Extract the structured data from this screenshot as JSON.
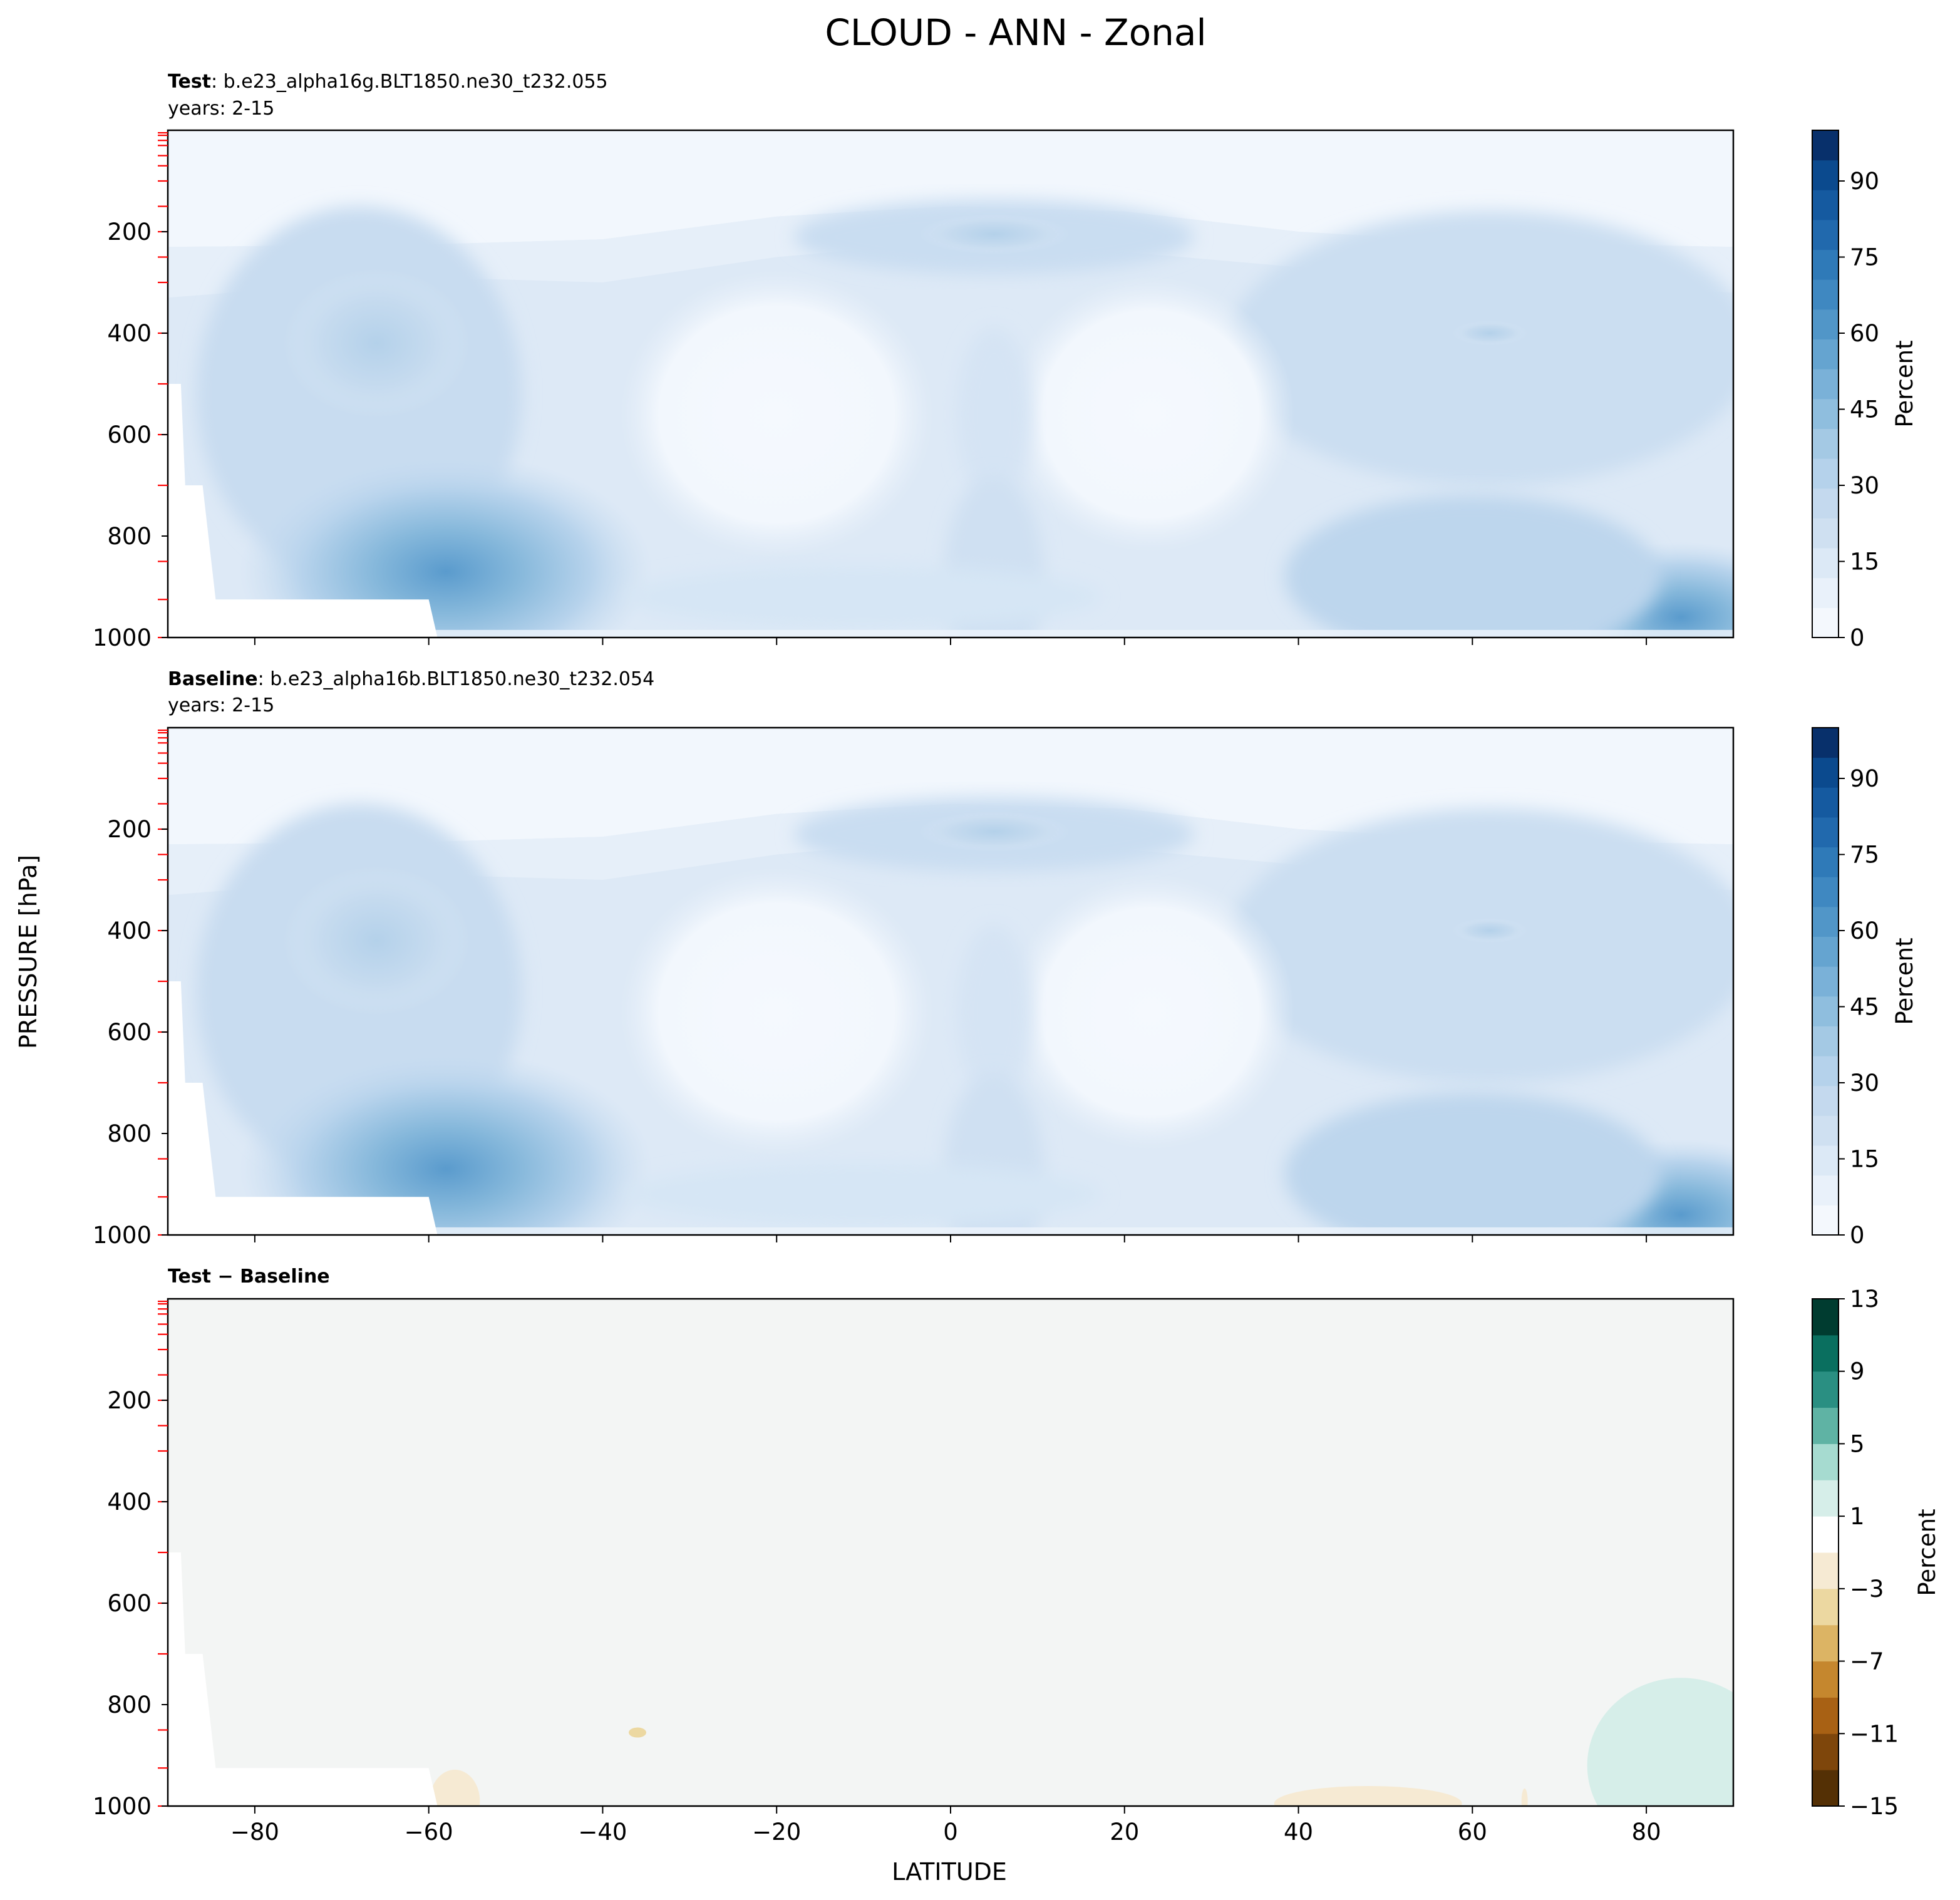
{
  "figure_title": "CLOUD - ANN - Zonal",
  "shared_ylabel": "PRESSURE [hPa]",
  "shared_xlabel": "LATITUDE",
  "colors": {
    "blues": [
      "#f4f8fd",
      "#e9f1fa",
      "#dce9f6",
      "#cfe0f1",
      "#c4d9ee",
      "#b5d2eb",
      "#a4c9e4",
      "#8fbede",
      "#7ab1d8",
      "#65a4d0",
      "#5196c8",
      "#3f88c1",
      "#2f7ab8",
      "#2169ad",
      "#155aa0",
      "#0b4a8e",
      "#08306b"
    ],
    "diff": [
      "#543005",
      "#7e460b",
      "#a86114",
      "#c5872e",
      "#dcb464",
      "#ecd8a1",
      "#f6ead3",
      "#ffffff",
      "#d6eee9",
      "#a6dbd0",
      "#5fb3a4",
      "#2a8f82",
      "#0a6f5f",
      "#003c30"
    ],
    "red_tick": "#ff0000"
  },
  "chart_data": [
    {
      "type": "heatmap",
      "label_bold": "Test",
      "label_rest": ": b.e23_alpha16g.BLT1850.ne30_t232.055",
      "subtitle": "years: 2-15",
      "xlim": [
        -90,
        90
      ],
      "ylim": [
        1000,
        0
      ],
      "yticks": [
        "200",
        "400",
        "600",
        "800",
        "1000"
      ],
      "colorbar_label": "Percent",
      "colorbar_range": [
        0,
        100
      ],
      "colorbar_ticks": [
        "0",
        "15",
        "30",
        "45",
        "60",
        "75",
        "90"
      ],
      "field_description": "zonal mean cloud fraction; maxima near 60S and 80N below 800 hPa (~50%), minima in subtropics",
      "highlights": [
        {
          "lat": -60,
          "p": 870,
          "value": 50
        },
        {
          "lat": 85,
          "p": 980,
          "value": 45
        },
        {
          "lat": 5,
          "p": 200,
          "value": 28
        },
        {
          "lat": -66,
          "p": 410,
          "value": 27
        }
      ]
    },
    {
      "type": "heatmap",
      "label_bold": "Baseline",
      "label_rest": ": b.e23_alpha16b.BLT1850.ne30_t232.054",
      "subtitle": "years: 2-15",
      "xlim": [
        -90,
        90
      ],
      "ylim": [
        1000,
        0
      ],
      "yticks": [
        "200",
        "400",
        "600",
        "800",
        "1000"
      ],
      "colorbar_label": "Percent",
      "colorbar_range": [
        0,
        100
      ],
      "colorbar_ticks": [
        "0",
        "15",
        "30",
        "45",
        "60",
        "75",
        "90"
      ],
      "highlights": [
        {
          "lat": -60,
          "p": 870,
          "value": 50
        },
        {
          "lat": 85,
          "p": 980,
          "value": 45
        },
        {
          "lat": 5,
          "p": 200,
          "value": 28
        },
        {
          "lat": -66,
          "p": 410,
          "value": 27
        }
      ]
    },
    {
      "type": "heatmap",
      "label_bold": "Test",
      "label_sep": " − ",
      "label_bold2": "Baseline",
      "xlim": [
        -90,
        90
      ],
      "ylim": [
        1000,
        0
      ],
      "yticks": [
        "200",
        "400",
        "600",
        "800",
        "1000"
      ],
      "xticks": [
        "−80",
        "−60",
        "−40",
        "−20",
        "0",
        "20",
        "40",
        "60",
        "80"
      ],
      "colorbar_label": "Percent",
      "colorbar_range": [
        -15,
        13
      ],
      "colorbar_ticks": [
        "−15",
        "−11",
        "−7",
        "−3",
        "1",
        "5",
        "9",
        "13"
      ],
      "highlights": [
        {
          "lat": 82,
          "p": 900,
          "value": 2
        },
        {
          "lat": 48,
          "p": 990,
          "value": -1.5
        },
        {
          "lat": -57,
          "p": 980,
          "value": -1.5
        },
        {
          "lat": -36,
          "p": 855,
          "value": -1.5
        }
      ]
    }
  ]
}
